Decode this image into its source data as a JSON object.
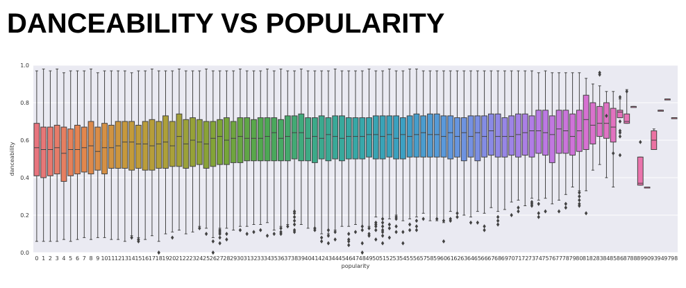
{
  "page": {
    "title": "DANCEABILITY VS POPULARITY"
  },
  "chart_data": {
    "type": "box",
    "title": "",
    "xlabel": "popularity",
    "ylabel": "danceability",
    "ylim": [
      0,
      1.0
    ],
    "yticks": [
      "0.0",
      "0.2",
      "0.4",
      "0.6",
      "0.8",
      "1.0"
    ],
    "grid": true,
    "legend": "none",
    "categories": [
      "0",
      "1",
      "2",
      "3",
      "4",
      "5",
      "6",
      "7",
      "8",
      "9",
      "10",
      "11",
      "12",
      "13",
      "14",
      "15",
      "16",
      "17",
      "18",
      "19",
      "20",
      "21",
      "22",
      "23",
      "24",
      "25",
      "26",
      "27",
      "28",
      "29",
      "30",
      "31",
      "32",
      "33",
      "34",
      "35",
      "36",
      "37",
      "38",
      "39",
      "40",
      "41",
      "42",
      "43",
      "44",
      "45",
      "46",
      "47",
      "48",
      "49",
      "50",
      "51",
      "52",
      "53",
      "54",
      "55",
      "56",
      "57",
      "58",
      "59",
      "60",
      "61",
      "62",
      "63",
      "64",
      "65",
      "66",
      "67",
      "68",
      "69",
      "70",
      "71",
      "72",
      "73",
      "74",
      "75",
      "76",
      "77",
      "78",
      "79",
      "80",
      "81",
      "82",
      "83",
      "84",
      "85",
      "86",
      "87",
      "88",
      "89",
      "90",
      "93",
      "94",
      "97",
      "98"
    ],
    "q1": [
      0.41,
      0.4,
      0.41,
      0.42,
      0.38,
      0.41,
      0.42,
      0.43,
      0.42,
      0.44,
      0.42,
      0.45,
      0.45,
      0.45,
      0.44,
      0.45,
      0.44,
      0.44,
      0.45,
      0.45,
      0.46,
      0.46,
      0.45,
      0.46,
      0.47,
      0.45,
      0.46,
      0.47,
      0.47,
      0.48,
      0.48,
      0.49,
      0.49,
      0.49,
      0.49,
      0.49,
      0.49,
      0.49,
      0.5,
      0.49,
      0.49,
      0.48,
      0.5,
      0.49,
      0.5,
      0.49,
      0.5,
      0.5,
      0.5,
      0.51,
      0.5,
      0.5,
      0.51,
      0.5,
      0.5,
      0.51,
      0.51,
      0.51,
      0.51,
      0.51,
      0.51,
      0.5,
      0.51,
      0.49,
      0.51,
      0.49,
      0.51,
      0.52,
      0.51,
      0.51,
      0.52,
      0.51,
      0.52,
      0.51,
      0.53,
      0.52,
      0.48,
      0.53,
      0.53,
      0.52,
      0.54,
      0.55,
      0.58,
      0.62,
      0.61,
      0.59,
      0.72,
      0.69,
      0.78,
      0.36,
      0.35,
      0.55,
      0.76,
      0.82,
      0.72
    ],
    "median": [
      0.56,
      0.55,
      0.55,
      0.56,
      0.53,
      0.55,
      0.55,
      0.56,
      0.57,
      0.54,
      0.56,
      0.56,
      0.57,
      0.59,
      0.59,
      0.58,
      0.58,
      0.57,
      0.58,
      0.59,
      0.57,
      0.62,
      0.58,
      0.6,
      0.59,
      0.58,
      0.61,
      0.62,
      0.6,
      0.61,
      0.62,
      0.61,
      0.61,
      0.61,
      0.62,
      0.64,
      0.61,
      0.62,
      0.64,
      0.64,
      0.61,
      0.62,
      0.61,
      0.63,
      0.62,
      0.61,
      0.62,
      0.62,
      0.62,
      0.63,
      0.63,
      0.62,
      0.63,
      0.61,
      0.63,
      0.62,
      0.63,
      0.64,
      0.63,
      0.63,
      0.62,
      0.64,
      0.62,
      0.64,
      0.62,
      0.64,
      0.62,
      0.65,
      0.62,
      0.62,
      0.62,
      0.63,
      0.64,
      0.65,
      0.65,
      0.64,
      0.63,
      0.66,
      0.65,
      0.62,
      0.65,
      0.71,
      0.68,
      0.69,
      0.69,
      0.67,
      0.75,
      0.7,
      0.78,
      0.37,
      0.35,
      0.6,
      0.76,
      0.82,
      0.72
    ],
    "q3": [
      0.69,
      0.67,
      0.67,
      0.68,
      0.67,
      0.66,
      0.68,
      0.67,
      0.7,
      0.67,
      0.69,
      0.68,
      0.7,
      0.7,
      0.7,
      0.68,
      0.7,
      0.71,
      0.7,
      0.73,
      0.7,
      0.74,
      0.71,
      0.72,
      0.71,
      0.7,
      0.7,
      0.71,
      0.72,
      0.7,
      0.72,
      0.72,
      0.71,
      0.72,
      0.72,
      0.72,
      0.71,
      0.73,
      0.73,
      0.74,
      0.72,
      0.72,
      0.73,
      0.72,
      0.73,
      0.73,
      0.72,
      0.72,
      0.72,
      0.72,
      0.73,
      0.73,
      0.73,
      0.73,
      0.72,
      0.73,
      0.74,
      0.73,
      0.74,
      0.74,
      0.73,
      0.73,
      0.72,
      0.72,
      0.73,
      0.73,
      0.73,
      0.74,
      0.74,
      0.72,
      0.73,
      0.74,
      0.74,
      0.73,
      0.76,
      0.76,
      0.73,
      0.76,
      0.76,
      0.74,
      0.76,
      0.84,
      0.8,
      0.78,
      0.8,
      0.77,
      0.76,
      0.74,
      0.78,
      0.51,
      0.35,
      0.65,
      0.76,
      0.82,
      0.72
    ],
    "whisker_low": [
      0.06,
      0.06,
      0.06,
      0.06,
      0.07,
      0.06,
      0.07,
      0.08,
      0.07,
      0.08,
      0.08,
      0.07,
      0.07,
      0.06,
      0.09,
      0.08,
      0.07,
      0.09,
      0.06,
      0.1,
      0.11,
      0.12,
      0.1,
      0.11,
      0.14,
      0.13,
      0.08,
      0.13,
      0.13,
      0.12,
      0.14,
      0.14,
      0.15,
      0.15,
      0.16,
      0.12,
      0.14,
      0.15,
      0.22,
      0.15,
      0.13,
      0.13,
      0.1,
      0.1,
      0.12,
      0.14,
      0.14,
      0.15,
      0.12,
      0.14,
      0.19,
      0.18,
      0.18,
      0.2,
      0.17,
      0.18,
      0.19,
      0.21,
      0.17,
      0.17,
      0.16,
      0.22,
      0.19,
      0.2,
      0.19,
      0.22,
      0.21,
      0.24,
      0.22,
      0.23,
      0.27,
      0.28,
      0.25,
      0.29,
      0.28,
      0.29,
      0.26,
      0.28,
      0.31,
      0.35,
      0.33,
      0.33,
      0.44,
      0.47,
      0.4,
      0.35,
      0.72,
      0.69,
      0.78,
      0.36,
      0.35,
      0.55,
      0.76,
      0.82,
      0.72
    ],
    "whisker_high": [
      0.97,
      0.98,
      0.97,
      0.98,
      0.96,
      0.97,
      0.97,
      0.97,
      0.98,
      0.96,
      0.97,
      0.97,
      0.97,
      0.97,
      0.96,
      0.97,
      0.97,
      0.98,
      0.97,
      0.97,
      0.97,
      0.98,
      0.97,
      0.97,
      0.97,
      0.98,
      0.97,
      0.97,
      0.97,
      0.97,
      0.98,
      0.97,
      0.97,
      0.97,
      0.98,
      0.97,
      0.98,
      0.97,
      0.97,
      0.98,
      0.97,
      0.97,
      0.97,
      0.97,
      0.98,
      0.97,
      0.97,
      0.97,
      0.97,
      0.98,
      0.97,
      0.97,
      0.98,
      0.97,
      0.97,
      0.98,
      0.98,
      0.97,
      0.97,
      0.97,
      0.97,
      0.97,
      0.97,
      0.97,
      0.97,
      0.97,
      0.97,
      0.97,
      0.97,
      0.97,
      0.97,
      0.97,
      0.97,
      0.97,
      0.96,
      0.97,
      0.96,
      0.96,
      0.96,
      0.96,
      0.96,
      0.93,
      0.9,
      0.89,
      0.86,
      0.86,
      0.82,
      0.87,
      0.78,
      0.51,
      0.35,
      0.66,
      0.76,
      0.82,
      0.72
    ],
    "outliers": [
      [],
      [],
      [],
      [],
      [],
      [],
      [],
      [],
      [],
      [],
      [],
      [],
      [],
      [],
      [
        0.08
      ],
      [
        0.07,
        0.06
      ],
      [],
      [],
      [
        0.0
      ],
      [],
      [
        0.08
      ],
      [],
      [],
      [],
      [
        0.13
      ],
      [
        0.1
      ],
      [
        0.0,
        0.06
      ],
      [
        0.1,
        0.08,
        0.05,
        0.11,
        0.12
      ],
      [
        0.1,
        0.07
      ],
      [],
      [
        0.12
      ],
      [
        0.1
      ],
      [
        0.11
      ],
      [
        0.12
      ],
      [
        0.09
      ],
      [
        0.1
      ],
      [
        0.13,
        0.11,
        0.1
      ],
      [
        0.14
      ],
      [
        0.11,
        0.12,
        0.15,
        0.17,
        0.19,
        0.21,
        0.22
      ],
      [],
      [],
      [
        0.13,
        0.12
      ],
      [
        0.08,
        0.06
      ],
      [
        0.09,
        0.05,
        0.12
      ],
      [
        0.11,
        0.07
      ],
      [],
      [
        0.1,
        0.07,
        0.06,
        0.04
      ],
      [
        0.11
      ],
      [
        0.12,
        0.14,
        0.05,
        0.0
      ],
      [
        0.13,
        0.09,
        0.1
      ],
      [
        0.12,
        0.15,
        0.07,
        0.14,
        0.16
      ],
      [
        0.12,
        0.14,
        0.09,
        0.05,
        0.11,
        0.16,
        0.18
      ],
      [
        0.08,
        0.15,
        0.13
      ],
      [
        0.18,
        0.14,
        0.19,
        0.11
      ],
      [
        0.11,
        0.05
      ],
      [
        0.15,
        0.12
      ],
      [
        0.14,
        0.17,
        0.12
      ],
      [
        0.18
      ],
      [],
      [
        0.18
      ],
      [
        0.06,
        0.17
      ],
      [
        0.18,
        0.17
      ],
      [
        0.19,
        0.21
      ],
      [],
      [
        0.16
      ],
      [
        0.16
      ],
      [
        0.14,
        0.12
      ],
      [],
      [
        0.15,
        0.19,
        0.17
      ],
      [],
      [
        0.2
      ],
      [
        0.24,
        0.22
      ],
      [],
      [
        0.25,
        0.26,
        0.27
      ],
      [
        0.19,
        0.21,
        0.26
      ],
      [
        0.22
      ],
      [],
      [
        0.22
      ],
      [
        0.26,
        0.24
      ],
      [],
      [
        0.28,
        0.3,
        0.32,
        0.25,
        0.26
      ],
      [
        0.21
      ],
      [],
      [
        0.95,
        0.96
      ],
      [
        0.73
      ],
      [
        0.53
      ],
      [
        0.83,
        0.7,
        0.64,
        0.65,
        0.62,
        0.52
      ],
      [
        0.86
      ],
      [],
      [
        0.59
      ],
      [],
      [],
      [],
      [],
      [],
      [],
      []
    ],
    "colors": [
      "#e8747e",
      "#e4864e",
      "#c59a3b",
      "#a8a13a",
      "#7ea436",
      "#4ea851",
      "#3daa86",
      "#36a8a6",
      "#3ba0c2",
      "#5c98dd",
      "#8b8ae6",
      "#b77be6",
      "#d671d4",
      "#e874b5",
      "#f07392"
    ],
    "grid_bg": "#eaeaf2",
    "grid_line": "#ffffff",
    "line_color": "#424242"
  }
}
